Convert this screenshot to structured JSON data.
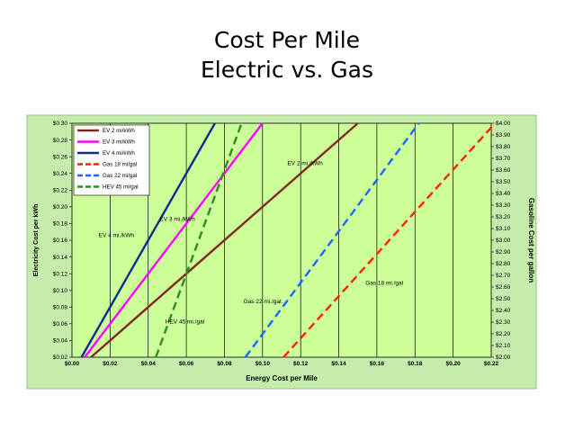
{
  "slide": {
    "title_line1": "Cost Per Mile",
    "title_line2": "Electric vs. Gas"
  },
  "colors": {
    "plot_bg": "#ccff99",
    "frame_bg": "#c6ecab",
    "grid": "#000000"
  },
  "chart_data": {
    "type": "line",
    "xlabel": "Energy Cost per Mile",
    "ylabel": "Electricity Cost per kWh",
    "y2label": "Gasoline Cost per gallon",
    "xlim": [
      0,
      0.22
    ],
    "ylim": [
      0.02,
      0.3
    ],
    "y2lim": [
      2.0,
      4.0
    ],
    "grid": "vertical",
    "legend_position": "top-left",
    "x_ticks": [
      "$0.00",
      "$0.02",
      "$0.04",
      "$0.06",
      "$0.08",
      "$0.10",
      "$0.12",
      "$0.14",
      "$0.16",
      "$0.18",
      "$0.20",
      "$0.22"
    ],
    "y_ticks": [
      "$0.02",
      "$0.04",
      "$0.06",
      "$0.08",
      "$0.10",
      "$0.12",
      "$0.14",
      "$0.16",
      "$0.18",
      "$0.20",
      "$0.22",
      "$0.24",
      "$0.26",
      "$0.28",
      "$0.30"
    ],
    "y2_ticks": [
      "$2.00",
      "$2.10",
      "$2.20",
      "$2.30",
      "$2.40",
      "$2.50",
      "$2.60",
      "$2.70",
      "$2.80",
      "$2.90",
      "$3.00",
      "$3.10",
      "$3.20",
      "$3.30",
      "$3.40",
      "$3.50",
      "$3.60",
      "$3.70",
      "$3.80",
      "$3.90",
      "$4.00"
    ],
    "x_tick_values": [
      0,
      0.02,
      0.04,
      0.06,
      0.08,
      0.1,
      0.12,
      0.14,
      0.16,
      0.18,
      0.2,
      0.22
    ],
    "y_tick_values": [
      0.02,
      0.04,
      0.06,
      0.08,
      0.1,
      0.12,
      0.14,
      0.16,
      0.18,
      0.2,
      0.22,
      0.24,
      0.26,
      0.28,
      0.3
    ],
    "y2_tick_values": [
      2.0,
      2.1,
      2.2,
      2.3,
      2.4,
      2.5,
      2.6,
      2.7,
      2.8,
      2.9,
      3.0,
      3.1,
      3.2,
      3.3,
      3.4,
      3.5,
      3.6,
      3.7,
      3.8,
      3.9,
      4.0
    ],
    "series": [
      {
        "name": "EV 2 mi/kWh",
        "label": "EV 2 mi./kWh",
        "color": "#7b2c1e",
        "dash": "solid",
        "axis": "left",
        "x": [
          0.01,
          0.15
        ],
        "y": [
          0.02,
          0.3
        ]
      },
      {
        "name": "EV 3 mi/kWh",
        "label": "EV 3 mi./kWh",
        "color": "#ff00ff",
        "dash": "solid",
        "axis": "left",
        "x": [
          0.0067,
          0.1
        ],
        "y": [
          0.02,
          0.3
        ]
      },
      {
        "name": "EV 4 mi/kWh",
        "label": "EV 4 mi./kWh",
        "color": "#0d2d8c",
        "dash": "solid",
        "axis": "left",
        "x": [
          0.005,
          0.075
        ],
        "y": [
          0.02,
          0.3
        ]
      },
      {
        "name": "Gas 18 mi/gal",
        "label": "Gas 18 mi./gal",
        "color": "#ff2200",
        "dash": "dashed",
        "axis": "right",
        "x": [
          0.111,
          0.222
        ],
        "y": [
          2.0,
          4.0
        ]
      },
      {
        "name": "Gas 22 mi/gal",
        "label": "Gas 22 mi./gal.",
        "color": "#1a66ff",
        "dash": "dashed",
        "axis": "right",
        "x": [
          0.091,
          0.182
        ],
        "y": [
          2.0,
          4.0
        ]
      },
      {
        "name": "HEV 45 mi/gal",
        "label": "HEV 45 mi./gal",
        "color": "#2e8b1e",
        "dash": "dashed",
        "axis": "right",
        "x": [
          0.044,
          0.089
        ],
        "y": [
          2.0,
          4.0
        ]
      }
    ]
  }
}
